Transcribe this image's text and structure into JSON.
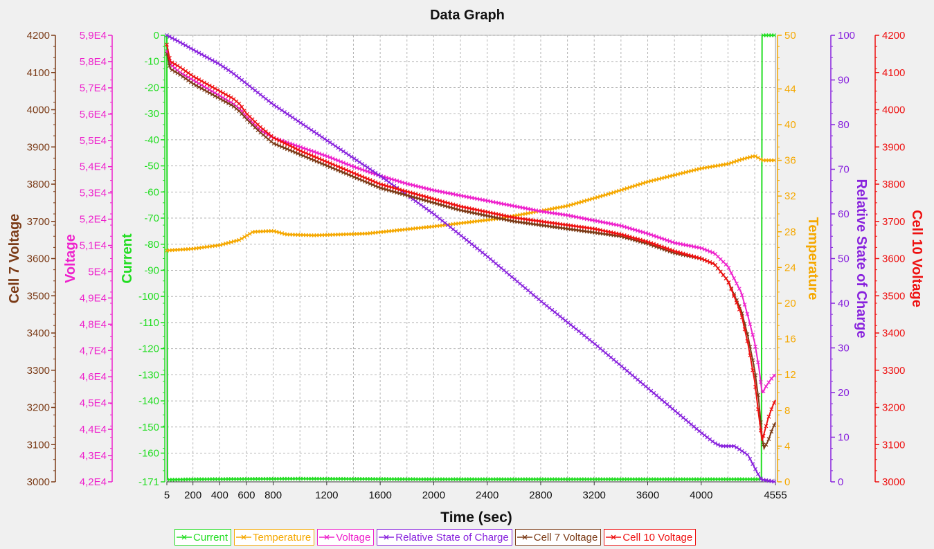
{
  "chart_data": {
    "type": "line",
    "title": "Data Graph",
    "xlabel": "Time (sec)",
    "xlim": [
      5,
      4555
    ],
    "x_ticks": [
      "5",
      "200",
      "400",
      "600",
      "800",
      "1200",
      "1600",
      "2000",
      "2400",
      "2800",
      "3200",
      "3600",
      "4000",
      "4555"
    ],
    "x_tick_values": [
      5,
      200,
      400,
      600,
      800,
      1200,
      1600,
      2000,
      2400,
      2800,
      3200,
      3600,
      4000,
      4555
    ],
    "grid": true,
    "legend_position": "bottom",
    "axes": {
      "cell7": {
        "label": "Cell 7 Voltage",
        "color": "#7b3b17",
        "range": [
          3000,
          4200
        ],
        "ticks": [
          "3000",
          "3100",
          "3200",
          "3300",
          "3400",
          "3500",
          "3600",
          "3700",
          "3800",
          "3900",
          "4000",
          "4100",
          "4200"
        ],
        "tick_values": [
          3000,
          3100,
          3200,
          3300,
          3400,
          3500,
          3600,
          3700,
          3800,
          3900,
          4000,
          4100,
          4200
        ]
      },
      "voltage": {
        "label": "Voltage",
        "color": "#ee22cc",
        "range": [
          42000,
          59000
        ],
        "ticks": [
          "4,2E4",
          "4,3E4",
          "4,4E4",
          "4,5E4",
          "4,6E4",
          "4,7E4",
          "4,8E4",
          "4,9E4",
          "5E4",
          "5,1E4",
          "5,2E4",
          "5,3E4",
          "5,4E4",
          "5,5E4",
          "5,6E4",
          "5,7E4",
          "5,8E4",
          "5,9E4"
        ],
        "tick_values": [
          42000,
          43000,
          44000,
          45000,
          46000,
          47000,
          48000,
          49000,
          50000,
          51000,
          52000,
          53000,
          54000,
          55000,
          56000,
          57000,
          58000,
          59000
        ]
      },
      "current": {
        "label": "Current",
        "color": "#22dd22",
        "range": [
          -171,
          0
        ],
        "ticks": [
          "-171",
          "-160",
          "-150",
          "-140",
          "-130",
          "-120",
          "-110",
          "-100",
          "-90",
          "-80",
          "-70",
          "-60",
          "-50",
          "-40",
          "-30",
          "-20",
          "-10",
          "0"
        ],
        "tick_values": [
          -171,
          -160,
          -150,
          -140,
          -130,
          -120,
          -110,
          -100,
          -90,
          -80,
          -70,
          -60,
          -50,
          -40,
          -30,
          -20,
          -10,
          0
        ]
      },
      "temperature": {
        "label": "Temperature",
        "color": "#f5a800",
        "range": [
          0,
          50
        ],
        "ticks": [
          "0",
          "4",
          "8",
          "12",
          "16",
          "20",
          "24",
          "28",
          "32",
          "36",
          "40",
          "44",
          "50"
        ],
        "tick_values": [
          0,
          4,
          8,
          12,
          16,
          20,
          24,
          28,
          32,
          36,
          40,
          44,
          50
        ]
      },
      "rsoc": {
        "label": "Relative State of Charge",
        "color": "#8822dd",
        "range": [
          0,
          100
        ],
        "ticks": [
          "0",
          "10",
          "20",
          "30",
          "40",
          "50",
          "60",
          "70",
          "80",
          "90",
          "100"
        ],
        "tick_values": [
          0,
          10,
          20,
          30,
          40,
          50,
          60,
          70,
          80,
          90,
          100
        ]
      },
      "cell10": {
        "label": "Cell 10 Voltage",
        "color": "#ee1111",
        "range": [
          3000,
          4200
        ],
        "ticks": [
          "3000",
          "3100",
          "3200",
          "3300",
          "3400",
          "3500",
          "3600",
          "3700",
          "3800",
          "3900",
          "4000",
          "4100",
          "4200"
        ],
        "tick_values": [
          3000,
          3100,
          3200,
          3300,
          3400,
          3500,
          3600,
          3700,
          3800,
          3900,
          4000,
          4100,
          4200
        ]
      }
    },
    "series": [
      {
        "name": "Current",
        "axis": "current",
        "color": "#22dd22",
        "x": [
          5,
          10,
          15,
          200,
          1000,
          2000,
          3000,
          4000,
          4400,
          4450,
          4455,
          4460,
          4555
        ],
        "y": [
          0,
          -170,
          -170.2,
          -170,
          -169.8,
          -170,
          -170,
          -170,
          -170,
          -170,
          0,
          0,
          0
        ]
      },
      {
        "name": "Temperature",
        "axis": "temperature",
        "color": "#f5a800",
        "x": [
          5,
          200,
          400,
          550,
          650,
          800,
          900,
          1100,
          1500,
          2000,
          2500,
          3000,
          3300,
          3600,
          4000,
          4200,
          4300,
          4400,
          4460,
          4555
        ],
        "y": [
          25.9,
          26.1,
          26.5,
          27.1,
          28.0,
          28.1,
          27.7,
          27.6,
          27.8,
          28.6,
          29.5,
          30.9,
          32.2,
          33.6,
          35.1,
          35.6,
          36.1,
          36.5,
          36.0,
          36.0
        ]
      },
      {
        "name": "Voltage",
        "axis": "voltage",
        "color": "#ee22cc",
        "x": [
          5,
          30,
          100,
          200,
          300,
          400,
          500,
          550,
          600,
          700,
          800,
          1000,
          1200,
          1400,
          1600,
          1800,
          2000,
          2200,
          2400,
          2600,
          2800,
          3000,
          3200,
          3400,
          3600,
          3800,
          4000,
          4100,
          4200,
          4300,
          4350,
          4400,
          4430,
          4455,
          4460,
          4480,
          4520,
          4555
        ],
        "y": [
          58400,
          57900,
          57600,
          57300,
          57000,
          56700,
          56400,
          56200,
          55900,
          55400,
          55100,
          54750,
          54400,
          54000,
          53650,
          53350,
          53100,
          52900,
          52700,
          52500,
          52300,
          52150,
          51950,
          51750,
          51450,
          51100,
          50900,
          50700,
          50200,
          49200,
          48300,
          47300,
          46400,
          45400,
          45400,
          45600,
          45900,
          46100
        ]
      },
      {
        "name": "Relative State of Charge",
        "axis": "rsoc",
        "color": "#8822dd",
        "x": [
          5,
          100,
          200,
          400,
          500,
          800,
          1200,
          1600,
          2000,
          2400,
          2800,
          3200,
          3600,
          4000,
          4100,
          4150,
          4250,
          4350,
          4420,
          4450,
          4555
        ],
        "y": [
          100,
          98.5,
          96.8,
          93.5,
          91.5,
          84.5,
          76.5,
          68.5,
          60.0,
          50.5,
          40.5,
          31.0,
          21.0,
          11.0,
          8.7,
          8.0,
          8.0,
          6.0,
          2.0,
          0.5,
          0
        ]
      },
      {
        "name": "Cell 7 Voltage",
        "axis": "cell7",
        "color": "#7b3b17",
        "x": [
          5,
          30,
          100,
          200,
          300,
          400,
          500,
          550,
          600,
          700,
          800,
          1000,
          1200,
          1400,
          1600,
          1800,
          2000,
          2200,
          2400,
          2600,
          2800,
          3000,
          3200,
          3400,
          3600,
          3800,
          4000,
          4100,
          4200,
          4300,
          4350,
          4400,
          4430,
          4455,
          4470,
          4500,
          4530,
          4555
        ],
        "y": [
          4150,
          4110,
          4095,
          4070,
          4050,
          4030,
          4010,
          3995,
          3975,
          3940,
          3910,
          3880,
          3850,
          3820,
          3790,
          3770,
          3750,
          3730,
          3715,
          3700,
          3690,
          3680,
          3670,
          3660,
          3640,
          3615,
          3600,
          3585,
          3540,
          3460,
          3390,
          3300,
          3220,
          3120,
          3090,
          3110,
          3140,
          3160
        ]
      },
      {
        "name": "Cell 10 Voltage",
        "axis": "cell10",
        "color": "#ee1111",
        "x": [
          5,
          30,
          100,
          200,
          300,
          400,
          500,
          550,
          600,
          700,
          800,
          1000,
          1200,
          1400,
          1600,
          1800,
          2000,
          2200,
          2400,
          2600,
          2800,
          3000,
          3200,
          3400,
          3600,
          3800,
          4000,
          4100,
          4200,
          4300,
          4350,
          4400,
          4430,
          4455,
          4470,
          4500,
          4530,
          4555
        ],
        "y": [
          4175,
          4130,
          4115,
          4090,
          4070,
          4050,
          4030,
          4015,
          3990,
          3955,
          3925,
          3890,
          3860,
          3830,
          3800,
          3780,
          3760,
          3740,
          3725,
          3710,
          3700,
          3690,
          3680,
          3665,
          3645,
          3620,
          3600,
          3585,
          3540,
          3450,
          3370,
          3270,
          3180,
          3110,
          3130,
          3170,
          3200,
          3220
        ]
      }
    ]
  }
}
